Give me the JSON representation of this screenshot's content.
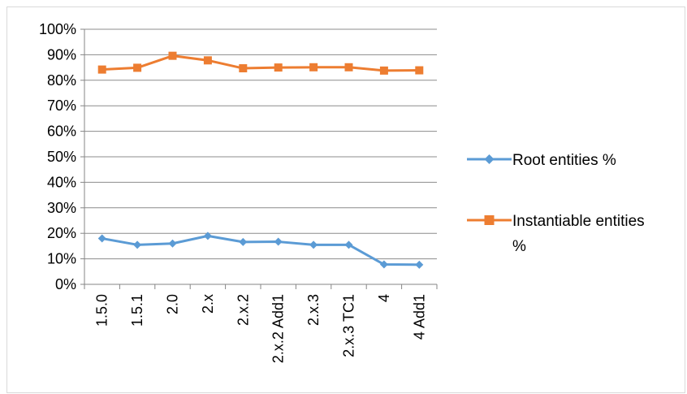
{
  "chart_data": {
    "type": "line",
    "title": "",
    "xlabel": "",
    "ylabel": "",
    "categories": [
      "1.5.0",
      "1.5.1",
      "2.0",
      "2.x",
      "2.x.2",
      "2.x.2 Add1",
      "2.x.3",
      "2.x.3 TC1",
      "4",
      "4 Add1"
    ],
    "yticks": [
      "0%",
      "10%",
      "20%",
      "30%",
      "40%",
      "50%",
      "60%",
      "70%",
      "80%",
      "90%",
      "100%"
    ],
    "ylim": [
      0,
      100
    ],
    "grid": true,
    "legend_position": "right",
    "series": [
      {
        "name": "Root entities %",
        "color": "#5b9bd5",
        "marker": "diamond",
        "values": [
          18,
          15.5,
          16,
          19,
          16.6,
          16.7,
          15.5,
          15.5,
          7.8,
          7.7
        ]
      },
      {
        "name": "Instantiable entities %",
        "name_lines": [
          "Instantiable entities",
          "%"
        ],
        "color": "#ed7d31",
        "marker": "square",
        "values": [
          84.2,
          84.9,
          89.6,
          87.8,
          84.7,
          85,
          85.1,
          85.1,
          83.8,
          83.9
        ]
      }
    ]
  }
}
